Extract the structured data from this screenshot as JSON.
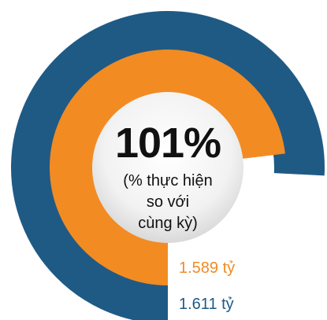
{
  "chart_data": {
    "type": "pie",
    "center": {
      "value": "101%",
      "caption_lines": [
        "(% thực hiện",
        "so với",
        "cùng kỳ)"
      ]
    },
    "series": [
      {
        "label": "1.611 tỷ",
        "value": 1611,
        "color": "#1f5a85"
      },
      {
        "label": "1.589 tỷ",
        "value": 1589,
        "color": "#f28b22"
      }
    ],
    "label_colors": {
      "outer": "#1f5a85",
      "inner": "#f28b22"
    }
  }
}
